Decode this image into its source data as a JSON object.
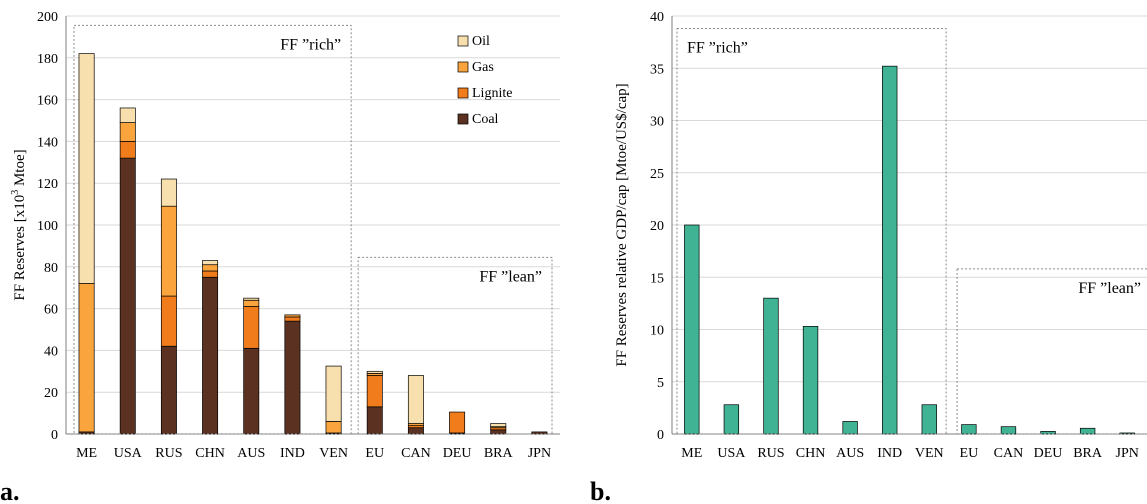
{
  "panel_labels": [
    "a.",
    "b."
  ],
  "chart_data": [
    {
      "type": "bar",
      "stacked": true,
      "panel": "a.",
      "categories": [
        "ME",
        "USA",
        "RUS",
        "CHN",
        "AUS",
        "IND",
        "VEN",
        "EU",
        "CAN",
        "DEU",
        "BRA",
        "JPN"
      ],
      "ylabel_prefix": "FF Reserves [x10",
      "ylabel_sup": "3",
      "ylabel_suffix": " Mtoe]",
      "ylim": [
        0,
        200
      ],
      "yticks": [
        0,
        20,
        40,
        60,
        80,
        100,
        120,
        140,
        160,
        180,
        200
      ],
      "grid": true,
      "legend_position": "top-right",
      "series": [
        {
          "name": "Coal",
          "color": "#5b3222",
          "values": [
            1,
            132,
            42,
            75,
            41,
            54,
            0.5,
            13,
            3,
            0.5,
            2,
            1
          ]
        },
        {
          "name": "Lignite",
          "color": "#f07c1c",
          "values": [
            0,
            8,
            24,
            3,
            20,
            2,
            0,
            15,
            1,
            10,
            1,
            0
          ]
        },
        {
          "name": "Gas",
          "color": "#f9a43d",
          "values": [
            71,
            9,
            43,
            3,
            3,
            1,
            5.5,
            1,
            1,
            0,
            0.5,
            0
          ]
        },
        {
          "name": "Oil",
          "color": "#f8dfae",
          "values": [
            110,
            7,
            13,
            2,
            1,
            0,
            26.5,
            1,
            23,
            0,
            1.5,
            0
          ]
        }
      ],
      "groups": [
        {
          "label": "FF ”rich”",
          "from": "ME",
          "to": "VEN"
        },
        {
          "label": "FF ”lean”",
          "from": "EU",
          "to": "JPN"
        }
      ]
    },
    {
      "type": "bar",
      "panel": "b.",
      "categories": [
        "ME",
        "USA",
        "RUS",
        "CHN",
        "AUS",
        "IND",
        "VEN",
        "EU",
        "CAN",
        "DEU",
        "BRA",
        "JPN"
      ],
      "ylabel": "FF Reserves relative GDP/cap [Mtoe/US$/cap]",
      "ylim": [
        0,
        40
      ],
      "yticks": [
        0,
        5,
        10,
        15,
        20,
        25,
        30,
        35,
        40
      ],
      "grid": true,
      "color": "#3fb393",
      "values": [
        20,
        2.8,
        13,
        10.3,
        1.2,
        35.2,
        2.8,
        0.9,
        0.7,
        0.25,
        0.55,
        0.1
      ],
      "groups": [
        {
          "label": "FF ”rich”",
          "from": "ME",
          "to": "VEN"
        },
        {
          "label": "FF ”lean”",
          "from": "EU",
          "to": "JPN"
        }
      ]
    }
  ]
}
